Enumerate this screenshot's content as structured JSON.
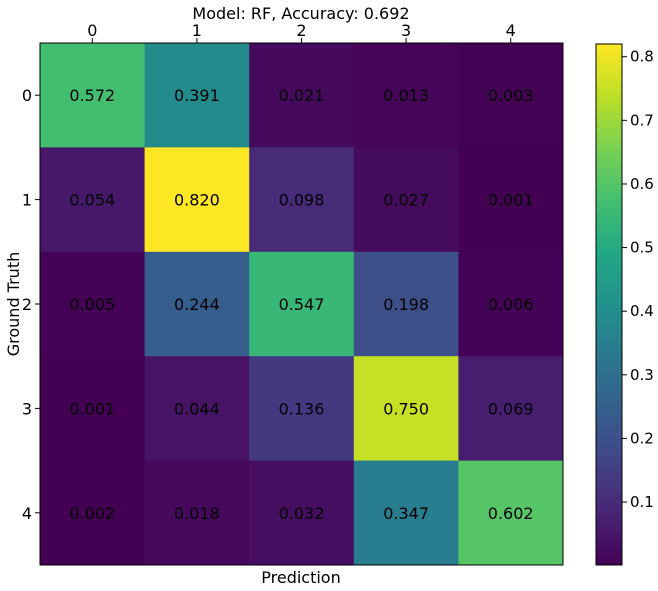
{
  "chart_data": {
    "type": "heatmap",
    "title": "Model: RF, Accuracy: 0.692",
    "xlabel": "Prediction",
    "ylabel": "Ground Truth",
    "x_categories": [
      "0",
      "1",
      "2",
      "3",
      "4"
    ],
    "y_categories": [
      "0",
      "1",
      "2",
      "3",
      "4"
    ],
    "values": [
      [
        0.572,
        0.391,
        0.021,
        0.013,
        0.003
      ],
      [
        0.054,
        0.82,
        0.098,
        0.027,
        0.001
      ],
      [
        0.005,
        0.244,
        0.547,
        0.198,
        0.006
      ],
      [
        0.001,
        0.044,
        0.136,
        0.75,
        0.069
      ],
      [
        0.002,
        0.018,
        0.032,
        0.347,
        0.602
      ]
    ],
    "cell_labels": [
      [
        "0.572",
        "0.391",
        "0.021",
        "0.013",
        "0.003"
      ],
      [
        "0.054",
        "0.820",
        "0.098",
        "0.027",
        "0.001"
      ],
      [
        "0.005",
        "0.244",
        "0.547",
        "0.198",
        "0.006"
      ],
      [
        "0.001",
        "0.044",
        "0.136",
        "0.750",
        "0.069"
      ],
      [
        "0.002",
        "0.018",
        "0.032",
        "0.347",
        "0.602"
      ]
    ],
    "colormap": "viridis",
    "color_range": [
      0.001,
      0.82
    ],
    "colorbar_ticks": [
      "0.1",
      "0.2",
      "0.3",
      "0.4",
      "0.5",
      "0.6",
      "0.7",
      "0.8"
    ],
    "colorbar_tick_values": [
      0.1,
      0.2,
      0.3,
      0.4,
      0.5,
      0.6,
      0.7,
      0.8
    ],
    "x_tick_position": "top",
    "grid": false
  }
}
